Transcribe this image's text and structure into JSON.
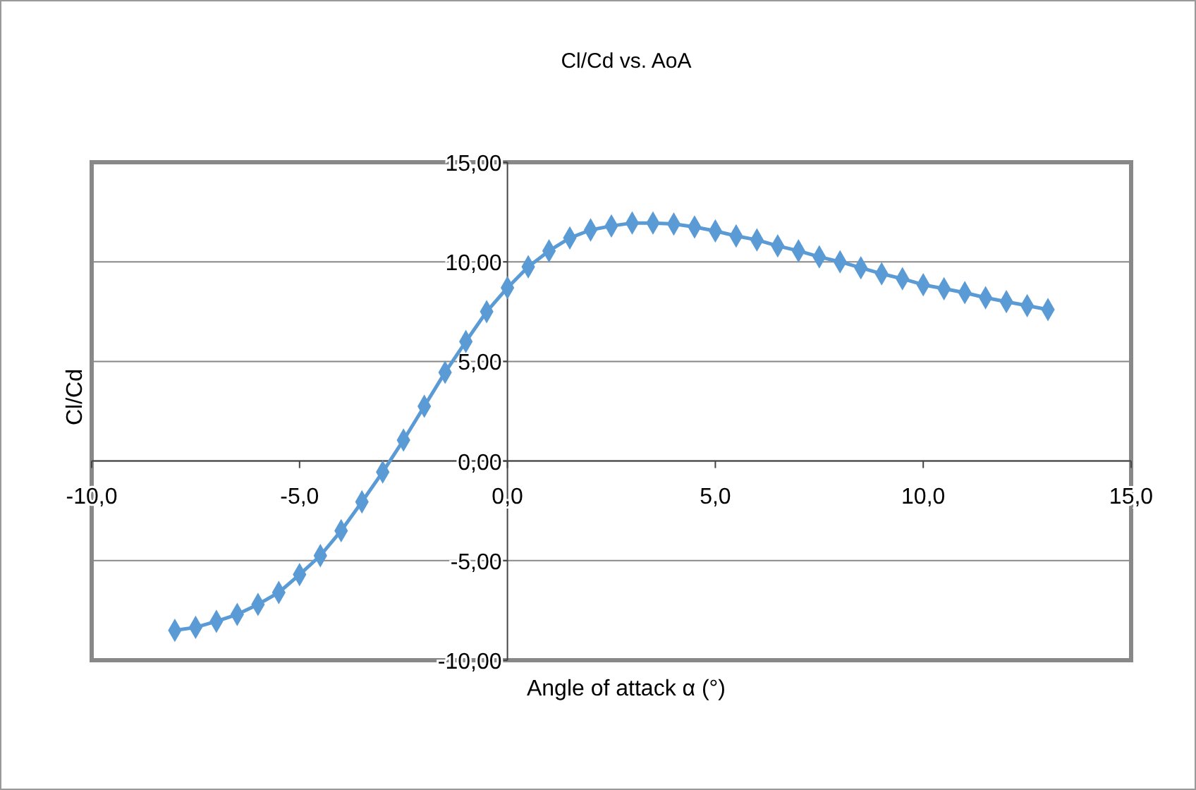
{
  "chart_data": {
    "type": "line",
    "title": "Cl/Cd vs. AoA",
    "xlabel": "Angle of attack α (°)",
    "ylabel": "Cl/Cd",
    "x": [
      -8,
      -7.5,
      -7,
      -6.5,
      -6,
      -5.5,
      -5,
      -4.5,
      -4,
      -3.5,
      -3,
      -2.5,
      -2,
      -1.5,
      -1,
      -0.5,
      0,
      0.5,
      1,
      1.5,
      2,
      2.5,
      3,
      3.5,
      4,
      4.5,
      5,
      5.5,
      6,
      6.5,
      7,
      7.5,
      8,
      8.5,
      9,
      9.5,
      10,
      10.5,
      11,
      11.5,
      12,
      12.5,
      13
    ],
    "series": [
      {
        "color": "#5b9bd5",
        "values": [
          -8.5,
          -8.35,
          -8.05,
          -7.7,
          -7.2,
          -6.6,
          -5.7,
          -4.75,
          -3.5,
          -2.05,
          -0.55,
          1.05,
          2.75,
          4.45,
          6.0,
          7.5,
          8.7,
          9.75,
          10.55,
          11.2,
          11.6,
          11.8,
          11.95,
          11.95,
          11.9,
          11.75,
          11.55,
          11.3,
          11.1,
          10.8,
          10.55,
          10.25,
          10.0,
          9.7,
          9.4,
          9.15,
          8.85,
          8.65,
          8.45,
          8.2,
          8.0,
          7.8,
          7.6
        ]
      }
    ],
    "xlim": [
      -10,
      15
    ],
    "ylim": [
      -10,
      15
    ],
    "xticks": [
      {
        "value": -10,
        "label": "-10,0"
      },
      {
        "value": -5,
        "label": "-5,0"
      },
      {
        "value": 0,
        "label": "0,0"
      },
      {
        "value": 5,
        "label": "5,0"
      },
      {
        "value": 10,
        "label": "10,0"
      },
      {
        "value": 15,
        "label": "15,0"
      }
    ],
    "yticks": [
      {
        "value": -10,
        "label": "-10,00"
      },
      {
        "value": -5,
        "label": "-5,00"
      },
      {
        "value": 0,
        "label": "0,00"
      },
      {
        "value": 5,
        "label": "5,00"
      },
      {
        "value": 10,
        "label": "10,00"
      },
      {
        "value": 15,
        "label": "15,00"
      }
    ],
    "grid": "y",
    "marker": "diamond",
    "line_style": "solid"
  }
}
